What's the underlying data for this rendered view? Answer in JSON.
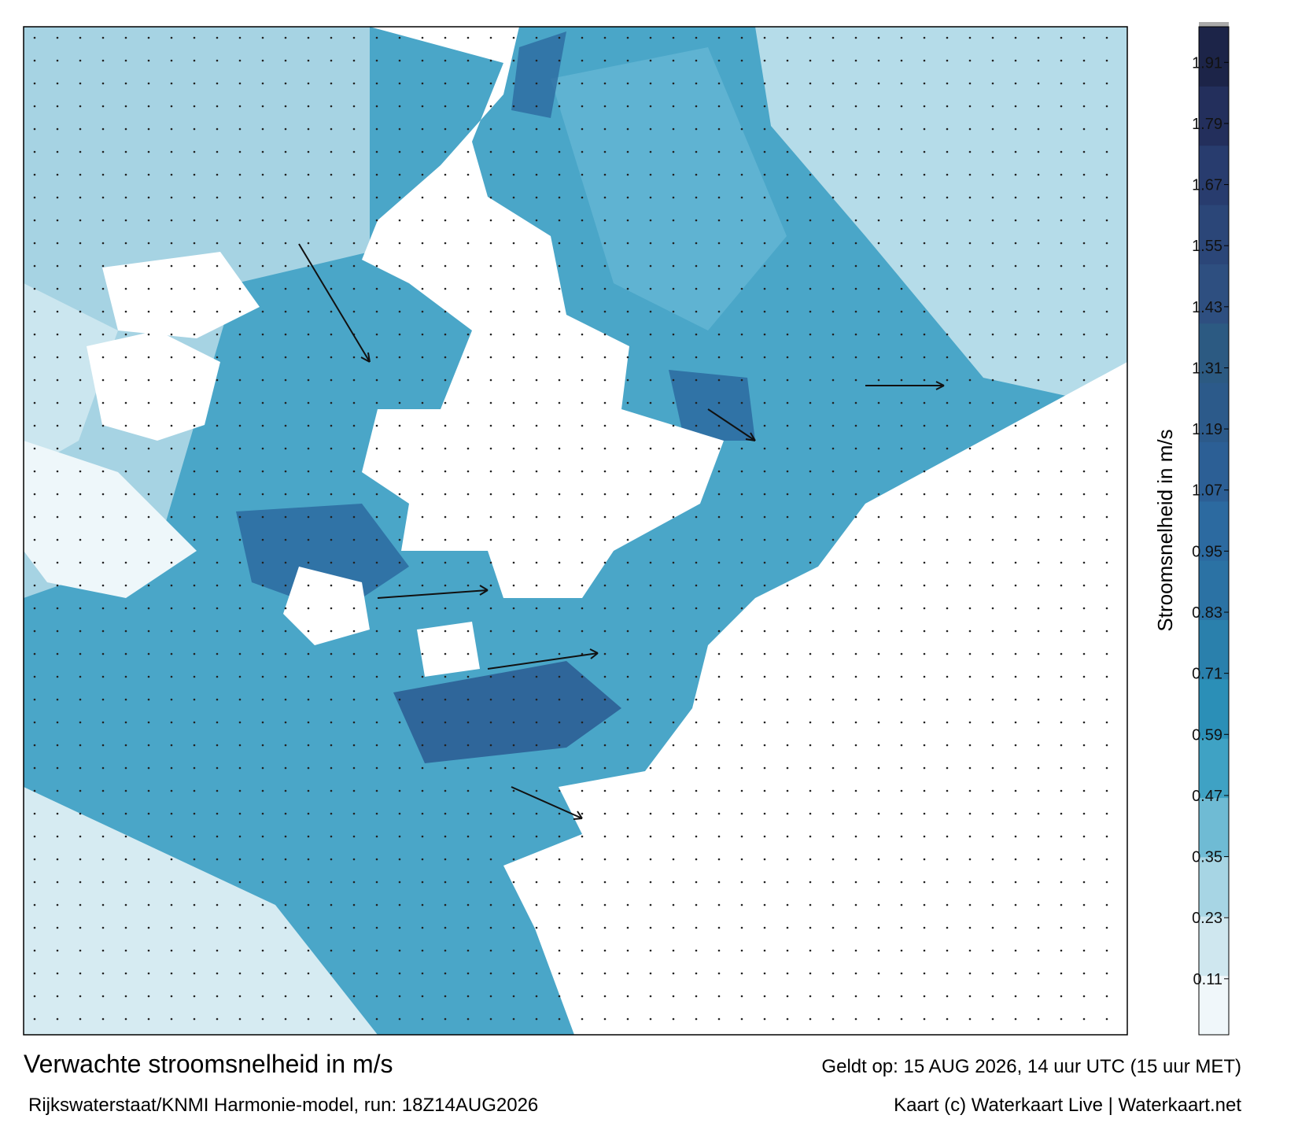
{
  "header": {
    "title": "Verwachte stroomsnelheid in m/s",
    "model": "Rijkswaterstaat/KNMI Harmonie-model, run: 18Z14AUG2026",
    "valid": "Geldt op: 15 AUG 2026, 14 uur UTC (15 uur MET)",
    "credit": "Kaart (c) Waterkaart Live | Waterkaart.net"
  },
  "colorbar": {
    "label": "Stroomsnelheid in m/s",
    "lim": [
      0,
      1.98
    ],
    "ticks": [
      0.11,
      0.23,
      0.35,
      0.47,
      0.59,
      0.71,
      0.83,
      0.95,
      1.07,
      1.19,
      1.31,
      1.43,
      1.55,
      1.67,
      1.79,
      1.91
    ],
    "colors": [
      "#f0f7fa",
      "#cfe7ef",
      "#a7d5e4",
      "#6fbbd4",
      "#3fa2c4",
      "#2b8fb7",
      "#2a80ac",
      "#2b72a4",
      "#2c6aa0",
      "#2c5f95",
      "#2c5a8a",
      "#2c5a82",
      "#2e4f80",
      "#2b4678",
      "#283c6e",
      "#232f5c",
      "#1c2448"
    ]
  }
}
